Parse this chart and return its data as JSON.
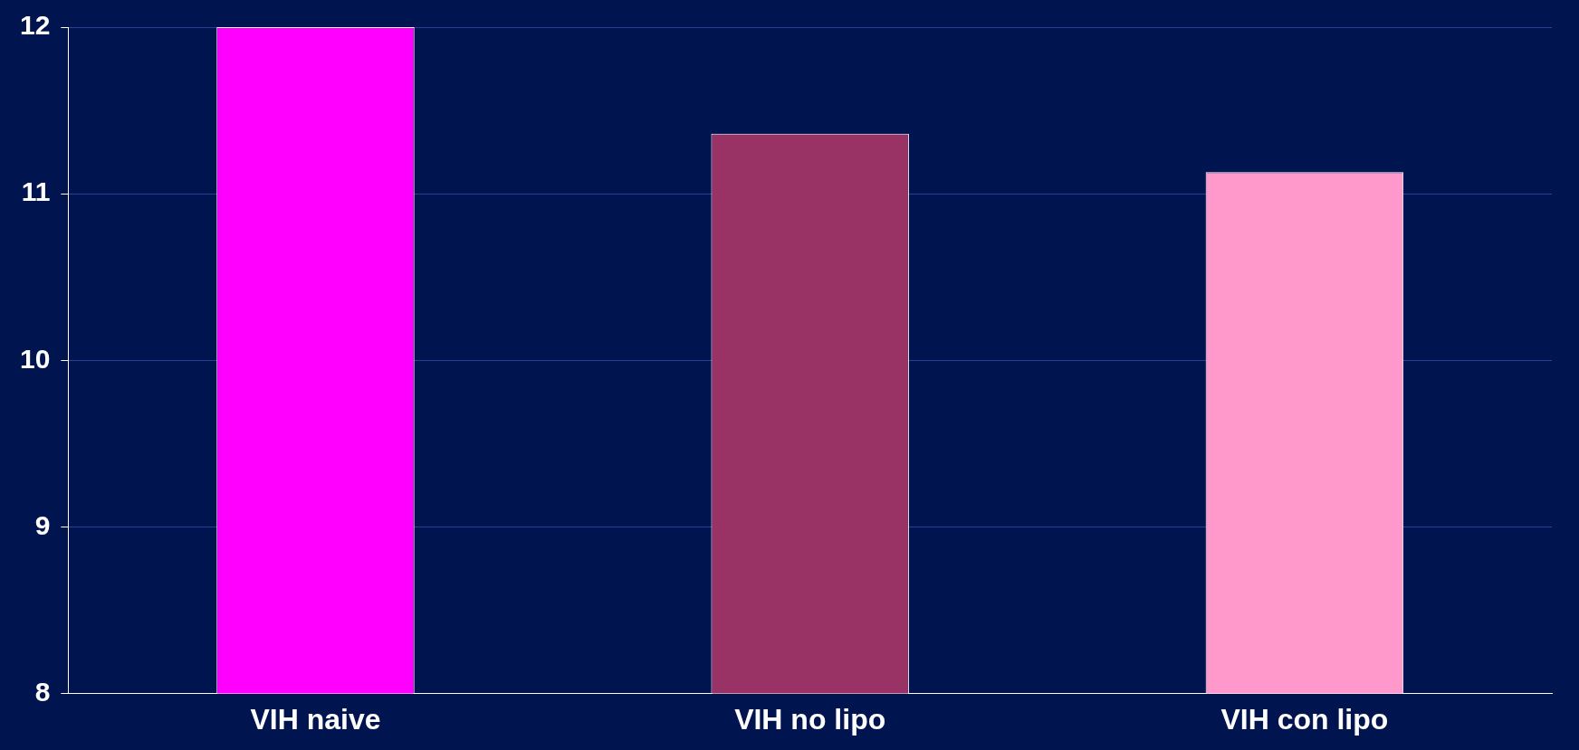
{
  "chart_data": {
    "type": "bar",
    "categories": [
      "VIH naive",
      "VIH no lipo",
      "VIH con lipo"
    ],
    "values": [
      12.0,
      11.36,
      11.13
    ],
    "colors": [
      "#ff00ff",
      "#993366",
      "#ff99cc"
    ],
    "ylim": [
      8,
      12
    ],
    "yticks": [
      8,
      9,
      10,
      11,
      12
    ],
    "grid": "y"
  }
}
